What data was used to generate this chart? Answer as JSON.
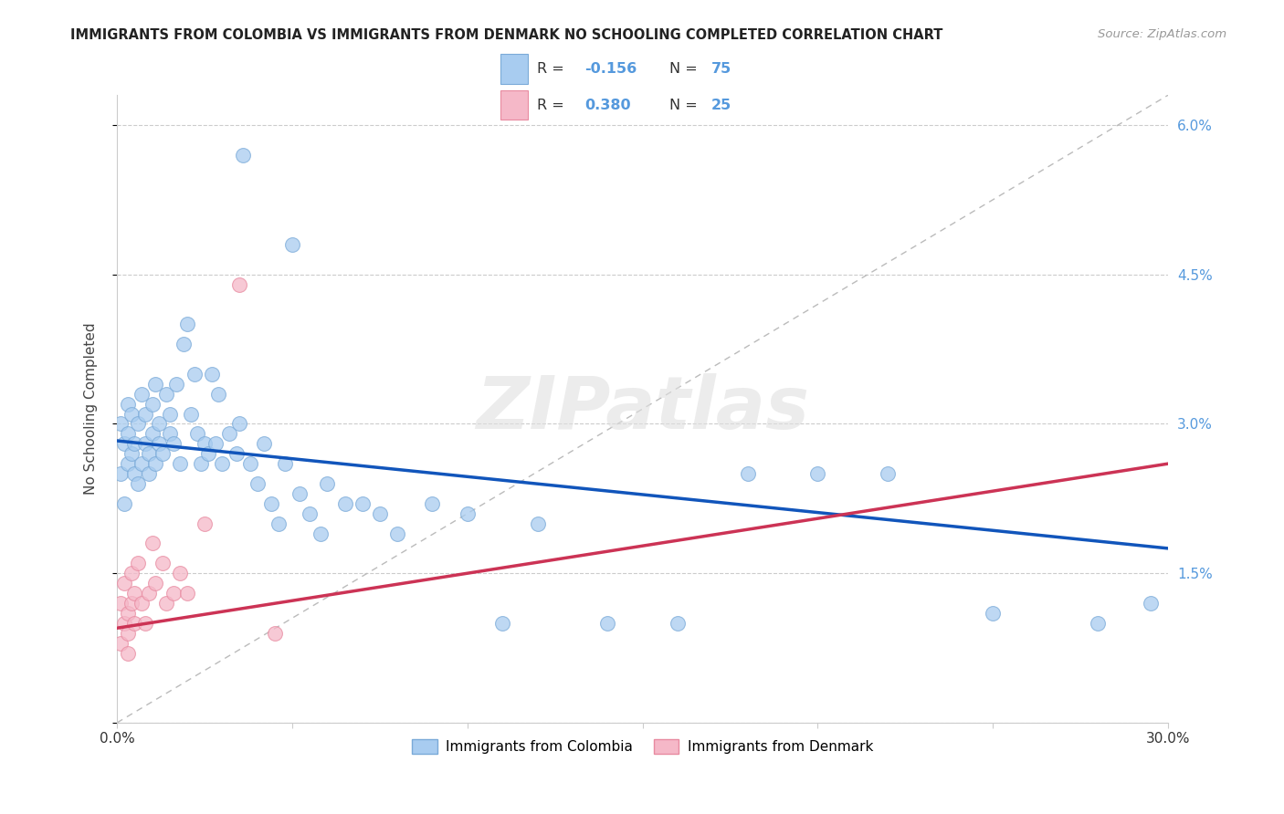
{
  "title": "IMMIGRANTS FROM COLOMBIA VS IMMIGRANTS FROM DENMARK NO SCHOOLING COMPLETED CORRELATION CHART",
  "source": "Source: ZipAtlas.com",
  "ylabel": "No Schooling Completed",
  "xmin": 0.0,
  "xmax": 0.3,
  "ymin": 0.0,
  "ymax": 0.063,
  "yticks": [
    0.0,
    0.015,
    0.03,
    0.045,
    0.06
  ],
  "ytick_labels_right": [
    "",
    "1.5%",
    "3.0%",
    "4.5%",
    "6.0%"
  ],
  "xticks": [
    0.0,
    0.05,
    0.1,
    0.15,
    0.2,
    0.25,
    0.3
  ],
  "xtick_labels": [
    "0.0%",
    "",
    "",
    "",
    "",
    "",
    "30.0%"
  ],
  "colombia_color": "#A8CCF0",
  "denmark_color": "#F5B8C8",
  "colombia_edge": "#7AAAD8",
  "denmark_edge": "#E88AA0",
  "colombia_line_color": "#1155BB",
  "denmark_line_color": "#CC3355",
  "diag_line_color": "#BBBBBB",
  "tick_color": "#5599DD",
  "watermark_text": "ZIPatlas",
  "colombia_R": -0.156,
  "colombia_N": 75,
  "denmark_R": 0.38,
  "denmark_N": 25,
  "colombia_x": [
    0.001,
    0.001,
    0.002,
    0.002,
    0.003,
    0.003,
    0.003,
    0.004,
    0.004,
    0.005,
    0.005,
    0.006,
    0.006,
    0.007,
    0.007,
    0.008,
    0.008,
    0.009,
    0.009,
    0.01,
    0.01,
    0.011,
    0.011,
    0.012,
    0.012,
    0.013,
    0.014,
    0.015,
    0.015,
    0.016,
    0.017,
    0.018,
    0.019,
    0.02,
    0.021,
    0.022,
    0.023,
    0.024,
    0.025,
    0.026,
    0.027,
    0.028,
    0.029,
    0.03,
    0.032,
    0.034,
    0.035,
    0.036,
    0.038,
    0.04,
    0.042,
    0.044,
    0.046,
    0.048,
    0.05,
    0.052,
    0.055,
    0.058,
    0.06,
    0.065,
    0.07,
    0.075,
    0.08,
    0.09,
    0.1,
    0.11,
    0.12,
    0.14,
    0.16,
    0.18,
    0.2,
    0.22,
    0.25,
    0.28,
    0.295
  ],
  "colombia_y": [
    0.03,
    0.025,
    0.028,
    0.022,
    0.026,
    0.029,
    0.032,
    0.027,
    0.031,
    0.025,
    0.028,
    0.024,
    0.03,
    0.026,
    0.033,
    0.028,
    0.031,
    0.025,
    0.027,
    0.029,
    0.032,
    0.026,
    0.034,
    0.028,
    0.03,
    0.027,
    0.033,
    0.029,
    0.031,
    0.028,
    0.034,
    0.026,
    0.038,
    0.04,
    0.031,
    0.035,
    0.029,
    0.026,
    0.028,
    0.027,
    0.035,
    0.028,
    0.033,
    0.026,
    0.029,
    0.027,
    0.03,
    0.057,
    0.026,
    0.024,
    0.028,
    0.022,
    0.02,
    0.026,
    0.048,
    0.023,
    0.021,
    0.019,
    0.024,
    0.022,
    0.022,
    0.021,
    0.019,
    0.022,
    0.021,
    0.01,
    0.02,
    0.01,
    0.01,
    0.025,
    0.025,
    0.025,
    0.011,
    0.01,
    0.012
  ],
  "denmark_x": [
    0.001,
    0.001,
    0.002,
    0.002,
    0.003,
    0.003,
    0.003,
    0.004,
    0.004,
    0.005,
    0.005,
    0.006,
    0.007,
    0.008,
    0.009,
    0.01,
    0.011,
    0.013,
    0.014,
    0.016,
    0.018,
    0.02,
    0.025,
    0.035,
    0.045
  ],
  "denmark_y": [
    0.008,
    0.012,
    0.01,
    0.014,
    0.007,
    0.011,
    0.009,
    0.012,
    0.015,
    0.01,
    0.013,
    0.016,
    0.012,
    0.01,
    0.013,
    0.018,
    0.014,
    0.016,
    0.012,
    0.013,
    0.015,
    0.013,
    0.02,
    0.044,
    0.009
  ],
  "colombia_regline": [
    0.0283,
    0.0175
  ],
  "denmark_regline": [
    0.0095,
    0.026
  ]
}
